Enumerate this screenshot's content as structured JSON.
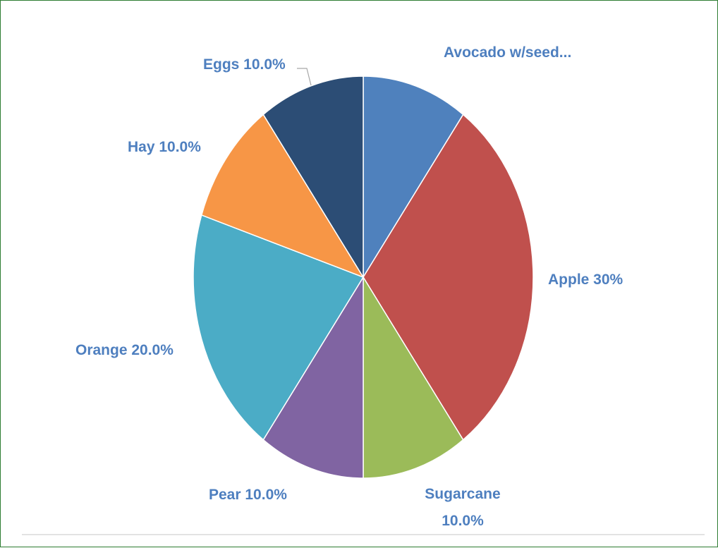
{
  "chart_data": {
    "type": "pie",
    "slices": [
      {
        "category": "Avocado w/seed...",
        "value": 10.0,
        "label": "Avocado w/seed...",
        "color": "#4f81bd"
      },
      {
        "category": "Apple",
        "value": 30.0,
        "label": "Apple 30%",
        "color": "#c0504d"
      },
      {
        "category": "Sugarcane",
        "value": 10.0,
        "label": "Sugarcane 10.0%",
        "color": "#9bbb59"
      },
      {
        "category": "Pear",
        "value": 10.0,
        "label": "Pear 10.0%",
        "color": "#8064a2"
      },
      {
        "category": "Orange",
        "value": 20.0,
        "label": "Orange 20.0%",
        "color": "#4bacc6"
      },
      {
        "category": "Hay",
        "value": 10.0,
        "label": "Hay 10.0%",
        "color": "#f79646"
      },
      {
        "category": "Eggs",
        "value": 10.0,
        "label": "Eggs 10.0%",
        "color": "#2c4d75"
      }
    ],
    "label_color": "#4e7fbf",
    "legend": "none"
  }
}
